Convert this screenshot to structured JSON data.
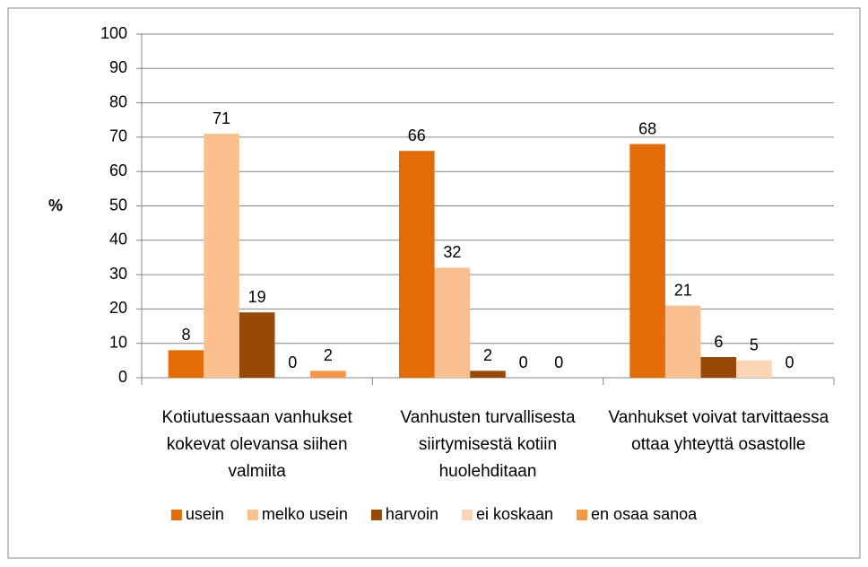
{
  "chart_data": {
    "type": "bar",
    "ylabel": "%",
    "categories": [
      "Kotiutuessaan vanhukset kokevat olevansa siihen valmiita",
      "Vanhusten turvallisesta siirtymisestä kotiin huolehditaan",
      "Vanhukset voivat tarvittaessa ottaa yhteyttä osastolle"
    ],
    "series": [
      {
        "name": "usein",
        "color": "#e36c09",
        "values": [
          8,
          66,
          68
        ]
      },
      {
        "name": "melko usein",
        "color": "#fac090",
        "values": [
          71,
          32,
          21
        ]
      },
      {
        "name": "harvoin",
        "color": "#984807",
        "values": [
          19,
          2,
          6
        ]
      },
      {
        "name": "ei koskaan",
        "color": "#fcd5b4",
        "values": [
          0,
          0,
          5
        ]
      },
      {
        "name": "en osaa sanoa",
        "color": "#f79646",
        "values": [
          2,
          0,
          0
        ]
      }
    ],
    "ylim": [
      0,
      100
    ],
    "yticks": [
      0,
      10,
      20,
      30,
      40,
      50,
      60,
      70,
      80,
      90,
      100
    ],
    "grid": true,
    "legend": "bottom"
  }
}
